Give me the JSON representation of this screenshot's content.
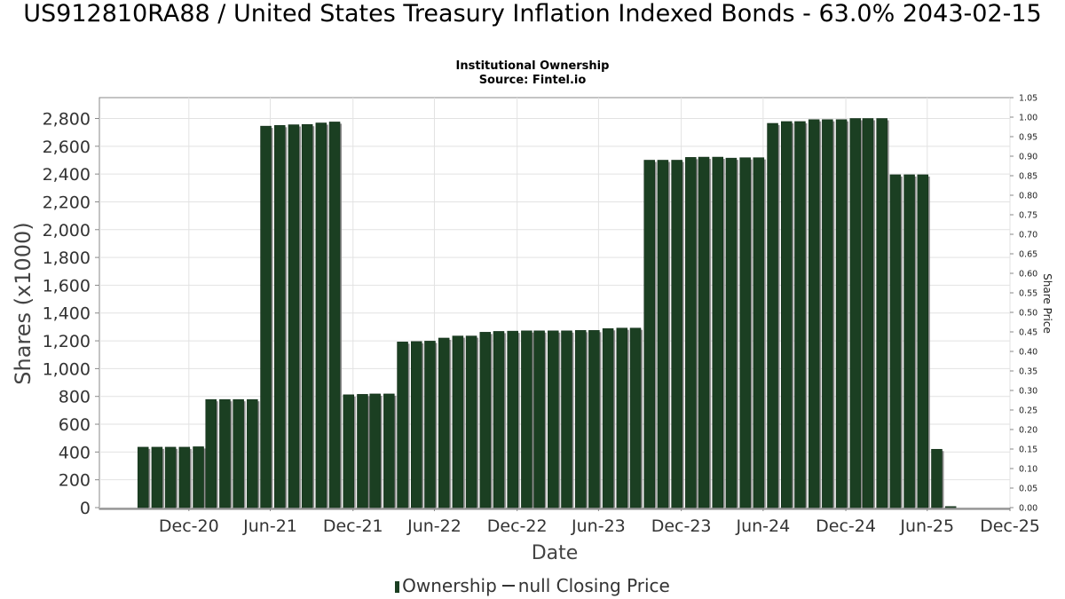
{
  "header": {
    "title": "US912810RA88 / United States Treasury Inflation Indexed Bonds - 63.0% 2043-02-15",
    "subtitle_line1": "Institutional Ownership",
    "subtitle_line2": "Source: Fintel.io"
  },
  "legend": {
    "ownership_label": "Ownership",
    "price_label": "null Closing Price"
  },
  "chart_data": {
    "type": "bar",
    "title": "US912810RA88 / United States Treasury Inflation Indexed Bonds - 63.0% 2043-02-15",
    "subtitle": "Institutional Ownership\nSource: Fintel.io",
    "xlabel": "Date",
    "ylabel": "Shares (x1000)",
    "y2label": "Share Price",
    "ylim": [
      0,
      2950
    ],
    "y2lim": [
      0,
      1.05
    ],
    "yticks": [
      0,
      200,
      400,
      600,
      800,
      1000,
      1200,
      1400,
      1600,
      1800,
      2000,
      2200,
      2400,
      2600,
      2800
    ],
    "yticklabels": [
      "0",
      "200",
      "400",
      "600",
      "800",
      "1,000",
      "1,200",
      "1,400",
      "1,600",
      "1,800",
      "2,000",
      "2,200",
      "2,400",
      "2,600",
      "2,800"
    ],
    "y2ticks": [
      "0.00",
      "0.05",
      "0.10",
      "0.15",
      "0.20",
      "0.25",
      "0.30",
      "0.35",
      "0.40",
      "0.45",
      "0.50",
      "0.55",
      "0.60",
      "0.65",
      "0.70",
      "0.75",
      "0.80",
      "0.85",
      "0.90",
      "0.95",
      "1.00",
      "1.05"
    ],
    "xlim": [
      "2020-06-15",
      "2025-12-31"
    ],
    "xticks": [
      {
        "date": "2020-12-31",
        "label": "Dec-20"
      },
      {
        "date": "2021-06-30",
        "label": "Jun-21"
      },
      {
        "date": "2021-12-31",
        "label": "Dec-21"
      },
      {
        "date": "2022-06-30",
        "label": "Jun-22"
      },
      {
        "date": "2022-12-31",
        "label": "Dec-22"
      },
      {
        "date": "2023-06-30",
        "label": "Jun-23"
      },
      {
        "date": "2023-12-31",
        "label": "Dec-23"
      },
      {
        "date": "2024-06-30",
        "label": "Jun-24"
      },
      {
        "date": "2024-12-31",
        "label": "Dec-24"
      },
      {
        "date": "2025-06-30",
        "label": "Jun-25"
      },
      {
        "date": "2025-12-31",
        "label": "Dec-25"
      }
    ],
    "grid": true,
    "legend_position": "bottom",
    "series": [
      {
        "name": "Ownership",
        "color": "#1b3f22",
        "x": [
          "2020-09-30",
          "2020-10-31",
          "2020-11-30",
          "2020-12-31",
          "2021-01-31",
          "2021-02-28",
          "2021-03-31",
          "2021-04-30",
          "2021-05-31",
          "2021-06-30",
          "2021-07-31",
          "2021-08-31",
          "2021-09-30",
          "2021-10-31",
          "2021-11-30",
          "2021-12-31",
          "2022-01-31",
          "2022-02-28",
          "2022-03-31",
          "2022-04-30",
          "2022-05-31",
          "2022-06-30",
          "2022-07-31",
          "2022-08-31",
          "2022-09-30",
          "2022-10-31",
          "2022-11-30",
          "2022-12-31",
          "2023-01-31",
          "2023-02-28",
          "2023-03-31",
          "2023-04-30",
          "2023-05-31",
          "2023-06-30",
          "2023-07-31",
          "2023-08-31",
          "2023-09-30",
          "2023-10-31",
          "2023-11-30",
          "2023-12-31",
          "2024-01-31",
          "2024-02-29",
          "2024-03-31",
          "2024-04-30",
          "2024-05-31",
          "2024-06-30",
          "2024-07-31",
          "2024-08-31",
          "2024-09-30",
          "2024-10-31",
          "2024-11-30",
          "2024-12-31",
          "2025-01-31",
          "2025-02-28",
          "2025-03-31",
          "2025-04-30",
          "2025-05-31",
          "2025-06-30",
          "2025-07-31",
          "2025-08-31"
        ],
        "values": [
          435,
          435,
          435,
          435,
          438,
          778,
          778,
          778,
          778,
          2745,
          2750,
          2755,
          2757,
          2768,
          2775,
          812,
          815,
          818,
          818,
          1192,
          1195,
          1198,
          1220,
          1235,
          1235,
          1262,
          1268,
          1270,
          1272,
          1272,
          1272,
          1272,
          1275,
          1275,
          1288,
          1292,
          1292,
          2500,
          2500,
          2500,
          2520,
          2522,
          2522,
          2515,
          2518,
          2518,
          2765,
          2778,
          2778,
          2792,
          2792,
          2792,
          2800,
          2800,
          2800,
          2395,
          2395,
          2395,
          420,
          8
        ]
      },
      {
        "name": "null Closing Price",
        "color": "#333333",
        "values": []
      }
    ]
  }
}
